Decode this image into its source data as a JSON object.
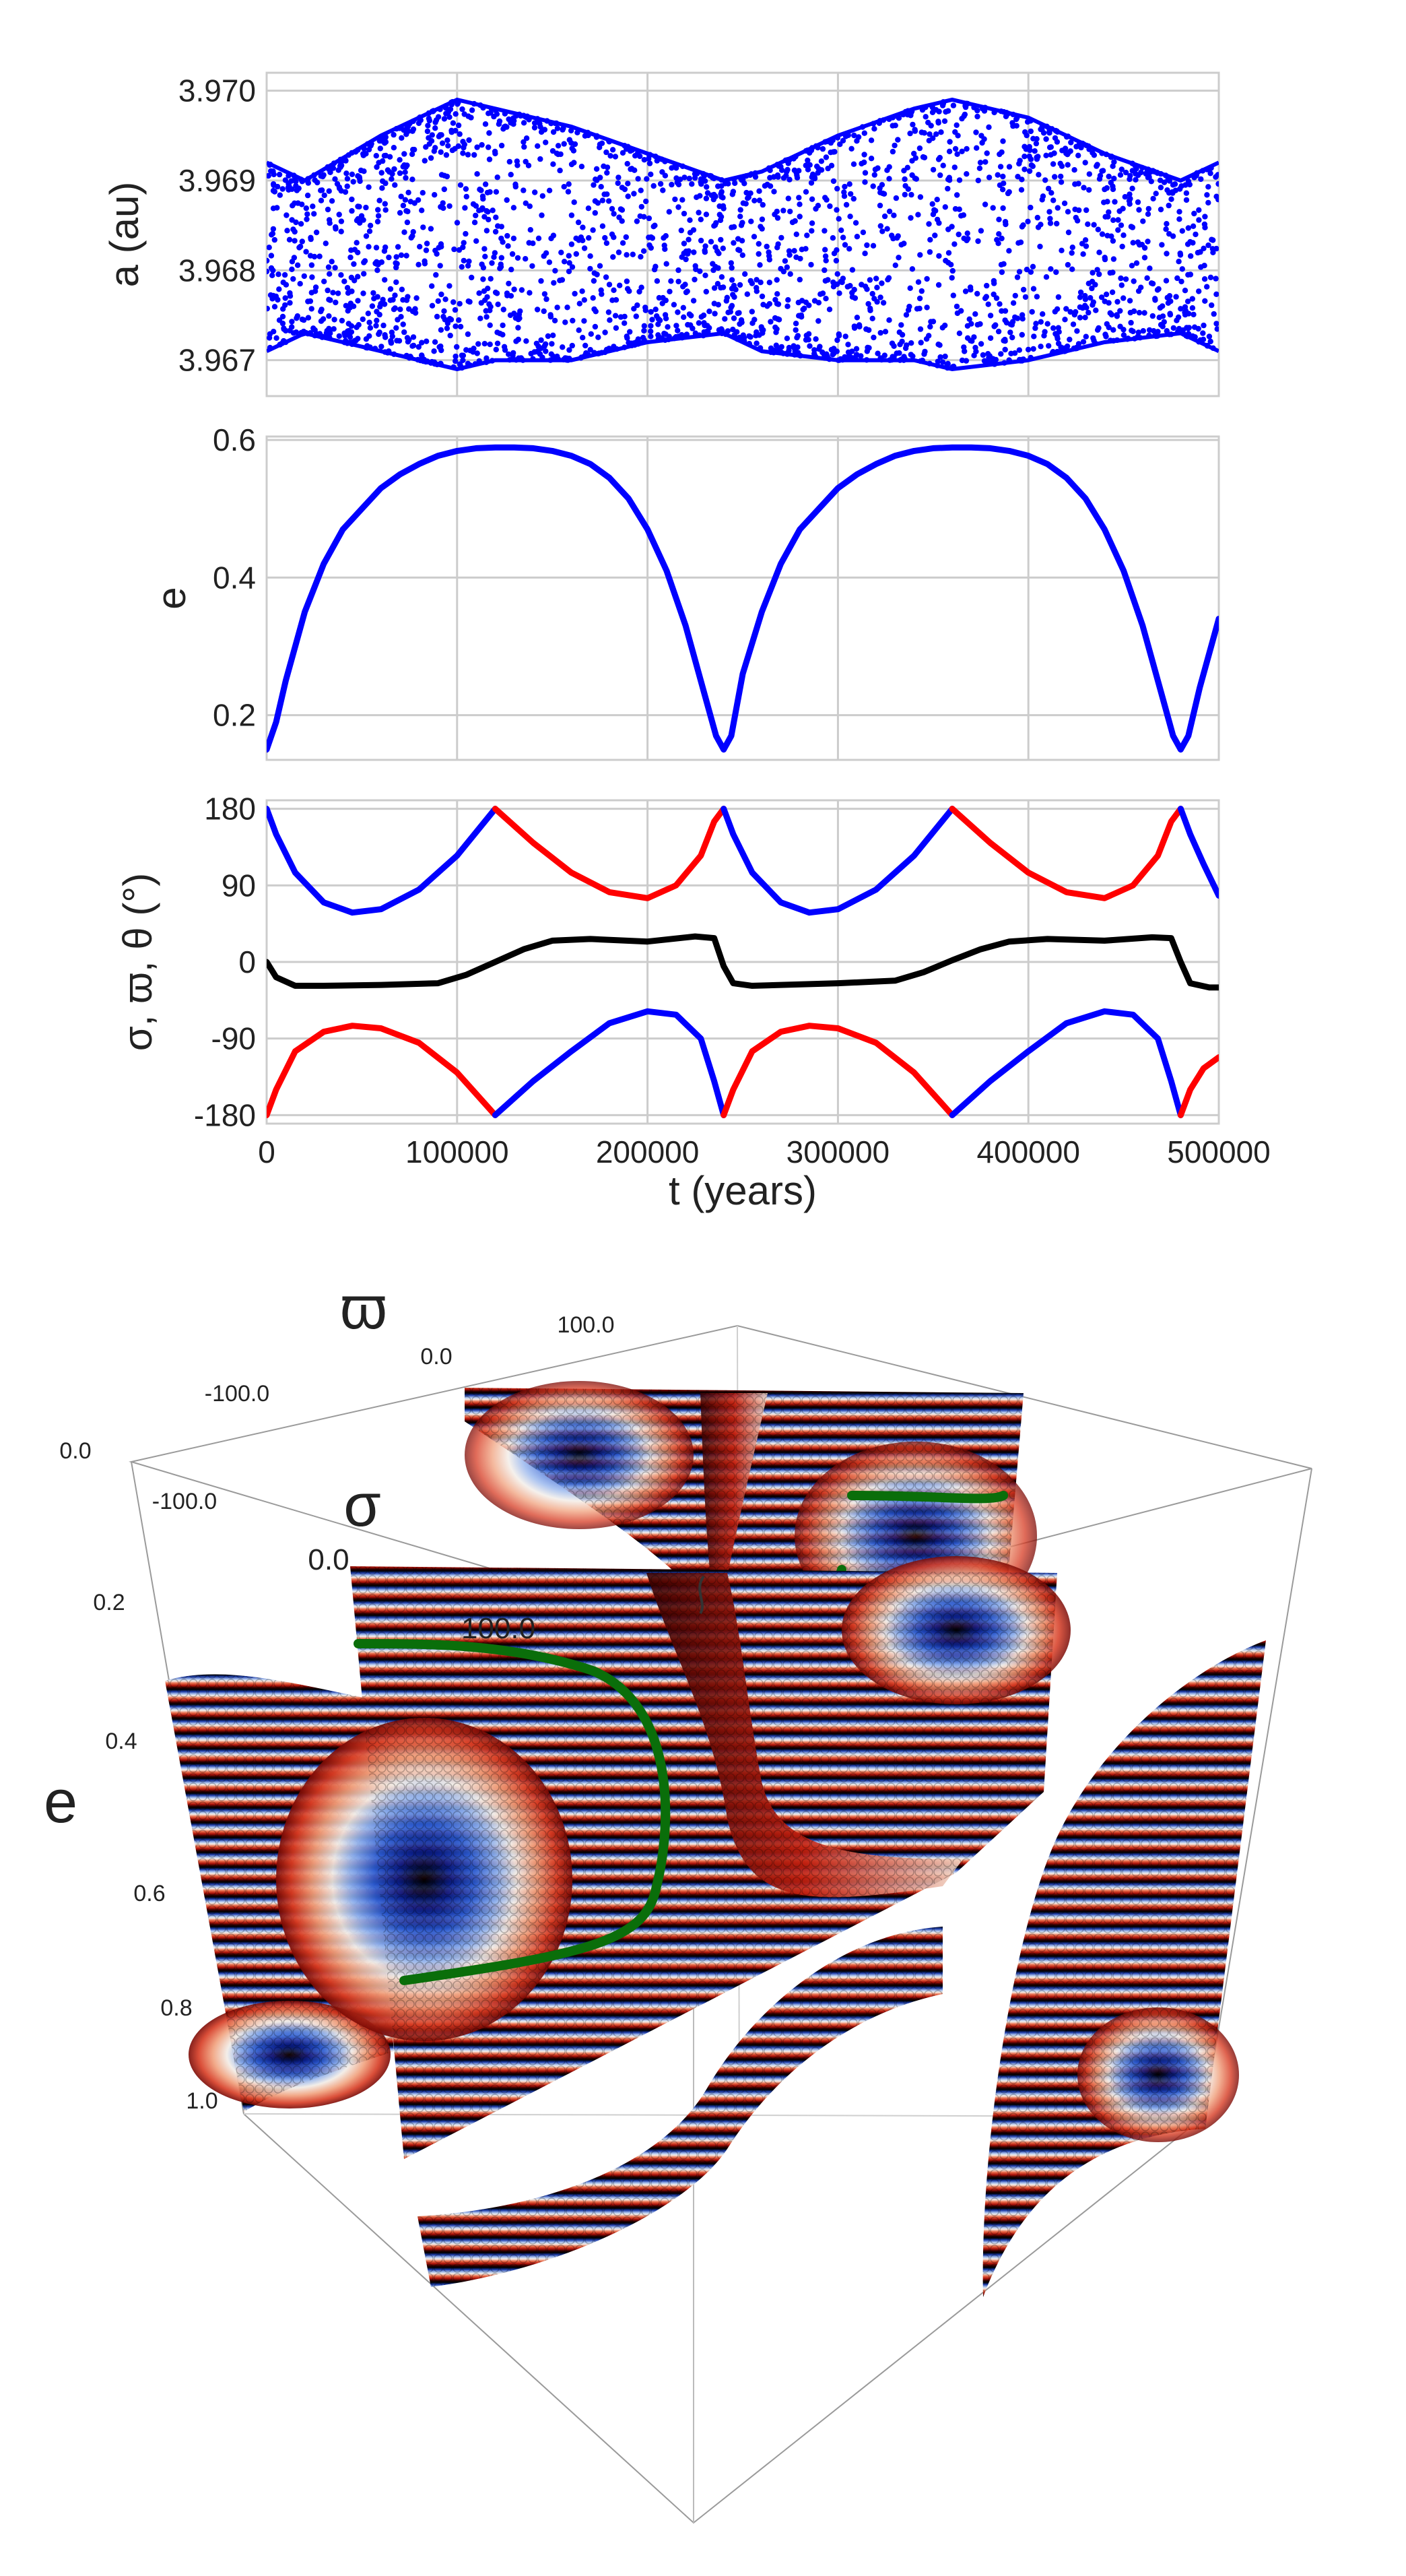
{
  "chart_data": [
    {
      "type": "scatter",
      "panel": "semi-major axis",
      "xlabel": "",
      "ylabel": "a (au)",
      "xlim": [
        0,
        500000
      ],
      "ylim": [
        3.9666,
        3.9702
      ],
      "yticks": [
        "3.967",
        "3.968",
        "3.969",
        "3.970"
      ],
      "ytick_values": [
        3.967,
        3.968,
        3.969,
        3.97
      ],
      "xtick_values": [
        0,
        100000,
        200000,
        300000,
        400000,
        500000
      ],
      "grid": true,
      "series": [
        {
          "name": "a",
          "color": "#0000ff",
          "envelope_t": [
            0,
            20000,
            60000,
            100000,
            120000,
            160000,
            200000,
            240000,
            260000,
            300000,
            340000,
            360000,
            400000,
            440000,
            480000,
            500000
          ],
          "upper": [
            3.9692,
            3.969,
            3.9695,
            3.9699,
            3.9698,
            3.9696,
            3.9693,
            3.969,
            3.9691,
            3.9695,
            3.9698,
            3.9699,
            3.9697,
            3.9693,
            3.969,
            3.9692
          ],
          "lower": [
            3.9671,
            3.9673,
            3.9671,
            3.9669,
            3.967,
            3.967,
            3.9672,
            3.9673,
            3.9671,
            3.967,
            3.967,
            3.9669,
            3.967,
            3.9672,
            3.9673,
            3.9671
          ]
        }
      ]
    },
    {
      "type": "line",
      "panel": "eccentricity",
      "xlabel": "",
      "ylabel": "e",
      "xlim": [
        0,
        500000
      ],
      "ylim": [
        0.135,
        0.605
      ],
      "yticks": [
        "0.2",
        "0.4",
        "0.6"
      ],
      "ytick_values": [
        0.2,
        0.4,
        0.6
      ],
      "xtick_values": [
        0,
        100000,
        200000,
        300000,
        400000,
        500000
      ],
      "grid": true,
      "series": [
        {
          "name": "e",
          "color": "#0000ff",
          "x": [
            0,
            5000,
            10000,
            20000,
            30000,
            40000,
            50000,
            60000,
            70000,
            80000,
            90000,
            100000,
            110000,
            120000,
            130000,
            140000,
            150000,
            160000,
            170000,
            180000,
            190000,
            200000,
            210000,
            220000,
            230000,
            236000,
            240000,
            244000,
            250000,
            260000,
            270000,
            280000,
            290000,
            300000,
            310000,
            320000,
            330000,
            340000,
            350000,
            360000,
            370000,
            380000,
            390000,
            400000,
            410000,
            420000,
            430000,
            440000,
            450000,
            460000,
            470000,
            476000,
            480000,
            484000,
            490000,
            500000
          ],
          "y": [
            0.15,
            0.19,
            0.25,
            0.35,
            0.42,
            0.47,
            0.5,
            0.53,
            0.55,
            0.565,
            0.577,
            0.584,
            0.588,
            0.589,
            0.589,
            0.588,
            0.584,
            0.577,
            0.565,
            0.545,
            0.515,
            0.47,
            0.41,
            0.33,
            0.23,
            0.17,
            0.15,
            0.17,
            0.26,
            0.35,
            0.42,
            0.47,
            0.5,
            0.53,
            0.55,
            0.565,
            0.577,
            0.584,
            0.588,
            0.589,
            0.589,
            0.588,
            0.584,
            0.577,
            0.565,
            0.545,
            0.515,
            0.47,
            0.41,
            0.33,
            0.23,
            0.17,
            0.15,
            0.17,
            0.24,
            0.34
          ]
        }
      ]
    },
    {
      "type": "line",
      "panel": "angles",
      "xlabel": "t (years)",
      "ylabel": "σ, ϖ, θ (°)",
      "xlim": [
        0,
        500000
      ],
      "ylim": [
        -190,
        190
      ],
      "yticks": [
        "-180",
        "-90",
        "0",
        "90",
        "180"
      ],
      "ytick_values": [
        -180,
        -90,
        0,
        90,
        180
      ],
      "xticks": [
        "0",
        "100000",
        "200000",
        "300000",
        "400000",
        "500000"
      ],
      "xtick_values": [
        0,
        100000,
        200000,
        300000,
        400000,
        500000
      ],
      "grid": true,
      "series": [
        {
          "name": "blue segment 1",
          "color": "#0000ff",
          "x": [
            0,
            5000,
            15000,
            30000,
            45000,
            60000,
            80000,
            100000,
            120000
          ],
          "y": [
            180,
            150,
            105,
            70,
            58,
            62,
            85,
            125,
            180
          ]
        },
        {
          "name": "red segment 1",
          "color": "#ff0000",
          "x": [
            120000,
            140000,
            160000,
            180000,
            200000,
            215000,
            228000,
            235000,
            240000
          ],
          "y": [
            180,
            140,
            105,
            82,
            75,
            90,
            125,
            165,
            180
          ]
        },
        {
          "name": "blue segment 2",
          "color": "#0000ff",
          "x": [
            240000,
            245000,
            255000,
            270000,
            285000,
            300000,
            320000,
            340000,
            360000
          ],
          "y": [
            180,
            150,
            105,
            70,
            58,
            62,
            85,
            125,
            180
          ]
        },
        {
          "name": "red segment 2",
          "color": "#ff0000",
          "x": [
            360000,
            380000,
            400000,
            420000,
            440000,
            455000,
            468000,
            475000,
            480000
          ],
          "y": [
            180,
            140,
            105,
            82,
            75,
            90,
            125,
            165,
            180
          ]
        },
        {
          "name": "blue segment 3",
          "color": "#0000ff",
          "x": [
            480000,
            485000,
            492000,
            500000
          ],
          "y": [
            180,
            150,
            115,
            78
          ]
        },
        {
          "name": "theta",
          "color": "#000000",
          "x": [
            0,
            5000,
            15000,
            30000,
            60000,
            90000,
            105000,
            120000,
            135000,
            150000,
            170000,
            200000,
            225000,
            235000,
            240000,
            245000,
            255000,
            270000,
            300000,
            330000,
            345000,
            360000,
            375000,
            390000,
            410000,
            440000,
            465000,
            475000,
            480000,
            485000,
            495000,
            500000
          ],
          "y": [
            0,
            -18,
            -28,
            -28,
            -27,
            -25,
            -15,
            0,
            15,
            25,
            27,
            24,
            30,
            28,
            -5,
            -25,
            -28,
            -27,
            -25,
            -22,
            -12,
            2,
            15,
            24,
            27,
            25,
            29,
            28,
            0,
            -25,
            -30,
            -30
          ]
        },
        {
          "name": "red lower 1",
          "color": "#ff0000",
          "x": [
            0,
            5000,
            15000,
            30000,
            45000,
            60000,
            80000,
            100000,
            120000
          ],
          "y": [
            -180,
            -150,
            -105,
            -82,
            -75,
            -78,
            -95,
            -130,
            -180
          ]
        },
        {
          "name": "blue lower 1",
          "color": "#0000ff",
          "x": [
            120000,
            140000,
            160000,
            180000,
            200000,
            215000,
            228000,
            235000,
            240000
          ],
          "y": [
            -180,
            -140,
            -105,
            -72,
            -58,
            -62,
            -90,
            -140,
            -180
          ]
        },
        {
          "name": "red lower 2",
          "color": "#ff0000",
          "x": [
            240000,
            245000,
            255000,
            270000,
            285000,
            300000,
            320000,
            340000,
            360000
          ],
          "y": [
            -180,
            -150,
            -105,
            -82,
            -75,
            -78,
            -95,
            -130,
            -180
          ]
        },
        {
          "name": "blue lower 2",
          "color": "#0000ff",
          "x": [
            360000,
            380000,
            400000,
            420000,
            440000,
            455000,
            468000,
            475000,
            480000
          ],
          "y": [
            -180,
            -140,
            -105,
            -72,
            -58,
            -62,
            -90,
            -140,
            -180
          ]
        },
        {
          "name": "red lower 3",
          "color": "#ff0000",
          "x": [
            480000,
            485000,
            492000,
            500000
          ],
          "y": [
            -180,
            -150,
            -125,
            -112
          ]
        }
      ]
    },
    {
      "type": "3d-surface",
      "title": "",
      "axis_labels": {
        "varpi": "ϖ",
        "sigma": "σ",
        "e": "e"
      },
      "varpi_ticks": [
        "-100.0",
        "0.0",
        "100.0"
      ],
      "sigma_ticks": [
        "-100.0",
        "0.0",
        "100.0"
      ],
      "e_ticks": [
        "0.0",
        "0.2",
        "0.4",
        "0.6",
        "0.8",
        "1.0"
      ],
      "colormap": [
        "#000000",
        "#0a1e8c",
        "#2b5ad0",
        "#8fb0ec",
        "#f2ece6",
        "#f0a07c",
        "#d63a22",
        "#7a0a05",
        "#000000"
      ],
      "highlight_curve_color": "#0a6e0a"
    }
  ]
}
